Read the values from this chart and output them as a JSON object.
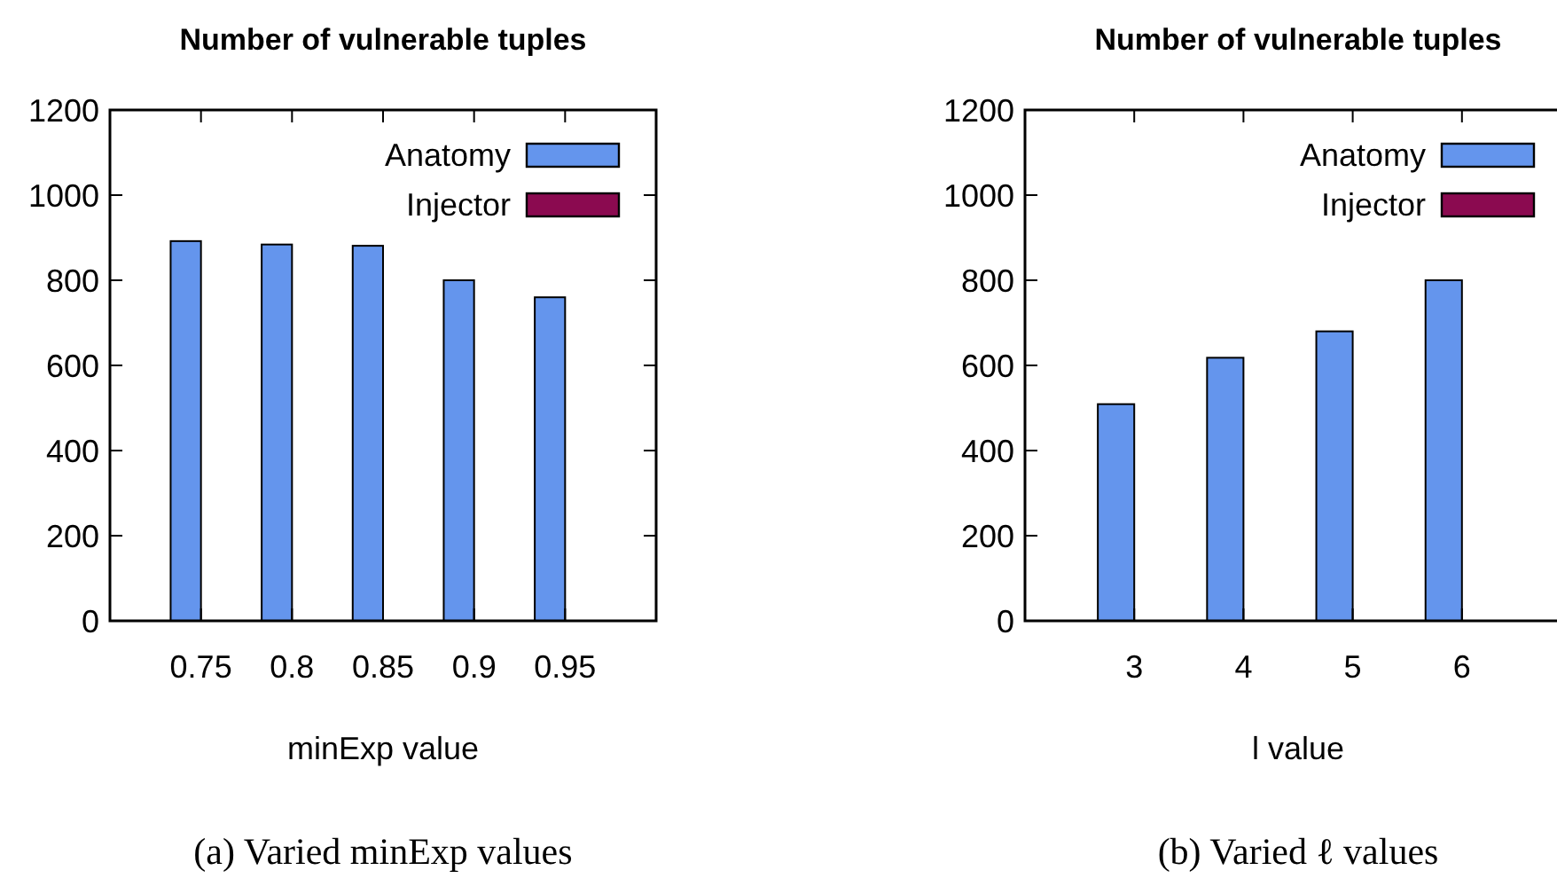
{
  "chart_data": [
    {
      "type": "bar",
      "title": "Number of vulnerable tuples",
      "xlabel": "minExp value",
      "categories": [
        "0.75",
        "0.8",
        "0.85",
        "0.9",
        "0.95"
      ],
      "series": [
        {
          "name": "Anatomy",
          "color": "#6495ed",
          "values": [
            892,
            884,
            881,
            800,
            760
          ]
        },
        {
          "name": "Injector",
          "color": "#8b0a50",
          "values": [
            0,
            0,
            0,
            0,
            0
          ]
        }
      ],
      "ylim": [
        0,
        1200
      ],
      "yticks": [
        0,
        200,
        400,
        600,
        800,
        1000,
        1200
      ],
      "legend": "top right",
      "grid": false,
      "annotations": [
        "(a) Varied minExp values"
      ]
    },
    {
      "type": "bar",
      "title": "Number of vulnerable tuples",
      "xlabel": "l value",
      "categories": [
        "3",
        "4",
        "5",
        "6"
      ],
      "series": [
        {
          "name": "Anatomy",
          "color": "#6495ed",
          "values": [
            509,
            618,
            680,
            800
          ]
        },
        {
          "name": "Injector",
          "color": "#8b0a50",
          "values": [
            0,
            0,
            0,
            0
          ]
        }
      ],
      "ylim": [
        0,
        1200
      ],
      "yticks": [
        0,
        200,
        400,
        600,
        800,
        1000,
        1200
      ],
      "legend": "top right",
      "grid": false,
      "annotations": [
        "(b) Varied ℓ values"
      ]
    }
  ]
}
